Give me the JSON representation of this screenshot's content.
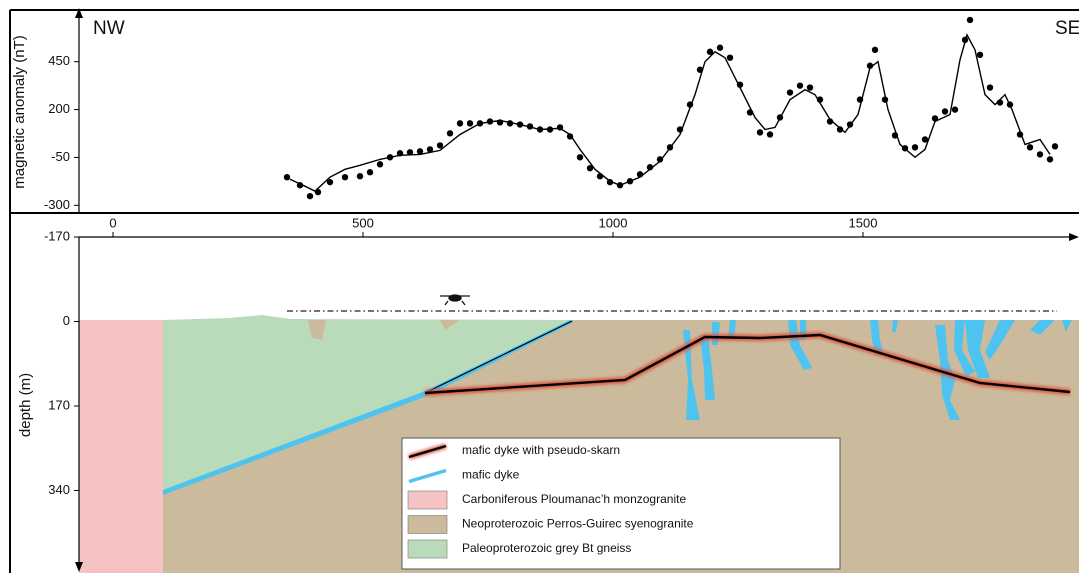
{
  "chart_data": [
    {
      "type": "scatter",
      "ylabel": "magnetic anomaly (nT)",
      "annotations": [
        "NW",
        "SE"
      ],
      "xlim": [
        -206,
        1924
      ],
      "ylim": [
        -340,
        720
      ],
      "yticks": [
        -300,
        -50,
        200,
        450
      ],
      "series": [
        {
          "style": "points",
          "color": "#000000",
          "x": [
            348,
            374,
            394,
            410,
            434,
            464,
            494,
            514,
            534,
            554,
            574,
            594,
            614,
            634,
            654,
            674,
            694,
            714,
            734,
            754,
            774,
            794,
            814,
            834,
            854,
            874,
            894,
            914,
            934,
            954,
            974,
            994,
            1014,
            1034,
            1054,
            1074,
            1094,
            1114,
            1134,
            1154,
            1174,
            1194,
            1214,
            1234,
            1254,
            1274,
            1294,
            1314,
            1334,
            1354,
            1374,
            1394,
            1414,
            1434,
            1454,
            1474,
            1494,
            1514,
            1524,
            1544,
            1564,
            1584,
            1604,
            1624,
            1644,
            1664,
            1684,
            1704,
            1714,
            1734,
            1754,
            1774,
            1794,
            1814,
            1834,
            1854,
            1874,
            1884
          ],
          "values": [
            -153,
            -195,
            -252,
            -231,
            -179,
            -153,
            -148,
            -127,
            -86,
            -49,
            -28,
            -23,
            -18,
            -8,
            13,
            76,
            128,
            128,
            128,
            138,
            133,
            128,
            122,
            112,
            96,
            96,
            107,
            60,
            -49,
            -106,
            -148,
            -179,
            -195,
            -174,
            -138,
            -101,
            -60,
            3,
            96,
            226,
            408,
            502,
            523,
            471,
            330,
            185,
            81,
            70,
            159,
            289,
            325,
            315,
            252,
            138,
            96,
            122,
            252,
            429,
            512,
            252,
            65,
            -2,
            3,
            44,
            154,
            190,
            200,
            564,
            668,
            486,
            315,
            237,
            226,
            70,
            3,
            -34,
            -60,
            8
          ]
        },
        {
          "style": "line",
          "color": "#000000",
          "x": [
            354,
            384,
            404,
            434,
            464,
            494,
            534,
            574,
            614,
            654,
            694,
            734,
            774,
            814,
            854,
            894,
            914,
            934,
            964,
            994,
            1014,
            1054,
            1094,
            1134,
            1164,
            1184,
            1204,
            1224,
            1254,
            1284,
            1304,
            1324,
            1354,
            1384,
            1404,
            1434,
            1464,
            1490,
            1514,
            1530,
            1550,
            1574,
            1604,
            1624,
            1644,
            1674,
            1694,
            1708,
            1724,
            1744,
            1764,
            1784,
            1798,
            1824,
            1854,
            1874
          ],
          "values": [
            -164,
            -200,
            -226,
            -153,
            -112,
            -91,
            -60,
            -39,
            -34,
            -13,
            70,
            128,
            143,
            122,
            96,
            102,
            70,
            -8,
            -112,
            -174,
            -195,
            -153,
            -70,
            70,
            278,
            450,
            502,
            471,
            315,
            159,
            96,
            107,
            252,
            304,
            278,
            148,
            81,
            174,
            419,
            450,
            200,
            18,
            -49,
            -8,
            138,
            174,
            460,
            590,
            512,
            278,
            226,
            278,
            200,
            18,
            44,
            -34
          ]
        }
      ]
    },
    {
      "type": "section",
      "ylabel": "depth (m)",
      "xlim": [
        -206,
        1924
      ],
      "xticks": [
        0,
        500,
        1000,
        1500
      ],
      "ylim": [
        -170,
        500
      ],
      "invert_y": true,
      "yticks": [
        -170,
        0,
        170,
        340
      ],
      "legend": [
        {
          "label": "mafic dyke with pseudo-skarn",
          "kind": "line",
          "color": "#000000",
          "edge": "#e0513a"
        },
        {
          "label": "mafic dyke",
          "kind": "line",
          "color": "#4fc3f0"
        },
        {
          "label": "Carboniferous Ploumanac’h monzogranite",
          "kind": "box",
          "color": "#f5c3c3"
        },
        {
          "label": "Neoproterozoic Perros-Guirec syenogranite",
          "kind": "box",
          "color": "#cbbb9c"
        },
        {
          "label": "Paleoproterozoic grey Bt gneiss",
          "kind": "box",
          "color": "#b9dbb9"
        }
      ]
    }
  ]
}
